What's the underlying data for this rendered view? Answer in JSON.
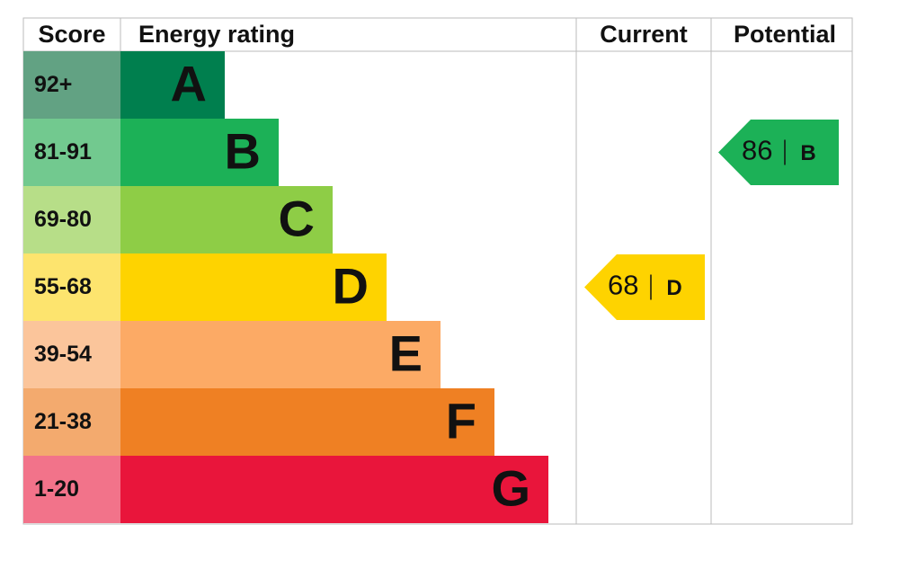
{
  "header": {
    "score": "Score",
    "energy_rating": "Energy rating",
    "current": "Current",
    "potential": "Potential"
  },
  "bands": [
    {
      "score": "92+",
      "rating": "A",
      "score_color": "#62a283",
      "color": "#007f4e"
    },
    {
      "score": "81-91",
      "rating": "B",
      "score_color": "#72c98f",
      "color": "#1cb157"
    },
    {
      "score": "69-80",
      "rating": "C",
      "score_color": "#b7de88",
      "color": "#8ecd46"
    },
    {
      "score": "55-68",
      "rating": "D",
      "score_color": "#fde46e",
      "color": "#fed300"
    },
    {
      "score": "39-54",
      "rating": "E",
      "score_color": "#fbc59b",
      "color": "#fcaa65"
    },
    {
      "score": "21-38",
      "rating": "F",
      "score_color": "#f3aa6e",
      "color": "#ef8023"
    },
    {
      "score": "1-20",
      "rating": "G",
      "score_color": "#f2738a",
      "color": "#e9153b"
    }
  ],
  "current": {
    "value": 68,
    "rating": "D"
  },
  "potential": {
    "value": 86,
    "rating": "B"
  }
}
